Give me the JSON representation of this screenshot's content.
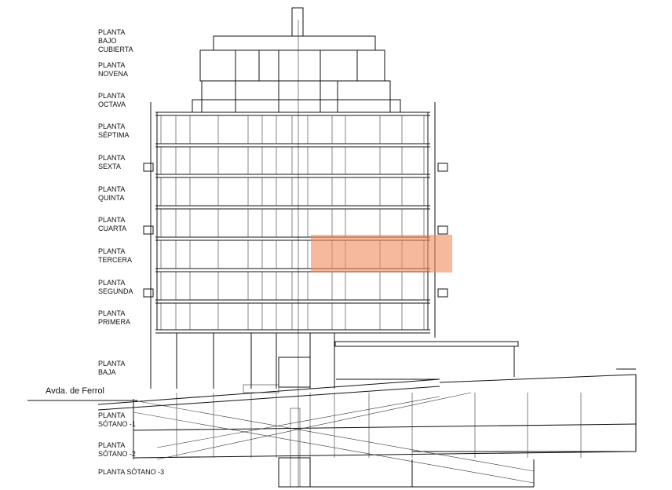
{
  "floors": [
    {
      "lines": [
        "PLANTA",
        "BAJO",
        "CUBIERTA"
      ]
    },
    {
      "lines": [
        "PLANTA",
        "NOVENA"
      ]
    },
    {
      "lines": [
        "PLANTA",
        "OCTAVA"
      ]
    },
    {
      "lines": [
        "PLANTA",
        "SÉPTIMA"
      ]
    },
    {
      "lines": [
        "PLANTA",
        "SEXTA"
      ]
    },
    {
      "lines": [
        "PLANTA",
        "QUINTA"
      ]
    },
    {
      "lines": [
        "PLANTA",
        "CUARTA"
      ]
    },
    {
      "lines": [
        "PLANTA",
        "TERCERA"
      ]
    },
    {
      "lines": [
        "PLANTA",
        "SEGUNDA"
      ]
    },
    {
      "lines": [
        "PLANTA",
        "PRIMERA"
      ]
    },
    {
      "lines": [
        "PLANTA",
        "BAJA"
      ]
    },
    {
      "lines": [
        "PLANTA",
        "SÓTANO -1"
      ]
    },
    {
      "lines": [
        "PLANTA",
        "SÓTANO -2"
      ]
    },
    {
      "lines": [
        "PLANTA SÓTANO -3"
      ]
    }
  ],
  "street": "Avda. de Ferrol"
}
